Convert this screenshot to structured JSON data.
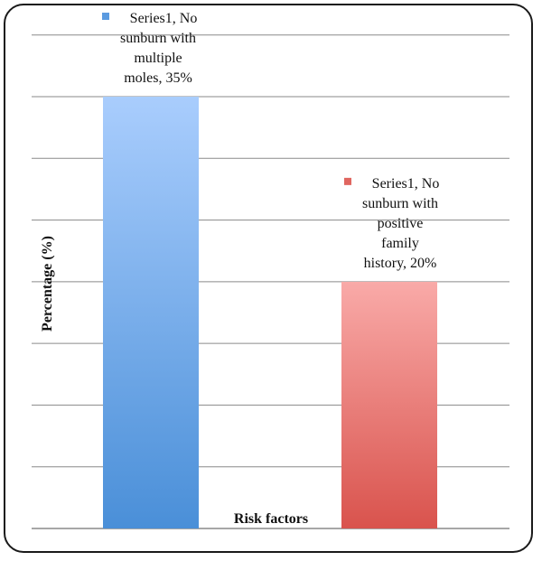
{
  "chart_data": {
    "type": "bar",
    "title": "",
    "xlabel": "Risk factors",
    "ylabel": "Percentage (%)",
    "ylim": [
      0,
      35
    ],
    "grid": true,
    "categories": [
      "No sunburn with multiple moles",
      "No sunburn with positive family history"
    ],
    "series": [
      {
        "name": "Series1",
        "values": [
          35,
          20
        ]
      }
    ],
    "data_labels": [
      [
        "Series1, No",
        "sunburn with",
        "multiple",
        "moles, 35%"
      ],
      [
        "Series1, No",
        "sunburn with",
        "positive",
        "family",
        "history, 20%"
      ]
    ],
    "colors": {
      "bar1_top": "#a9cdfd",
      "bar1_bottom": "#4a8fd8",
      "bar2_top": "#f9aaa8",
      "bar2_bottom": "#d9534d",
      "legend1": "#5b9be0",
      "legend2": "#e06660",
      "grid": "#8a8a8a"
    }
  }
}
